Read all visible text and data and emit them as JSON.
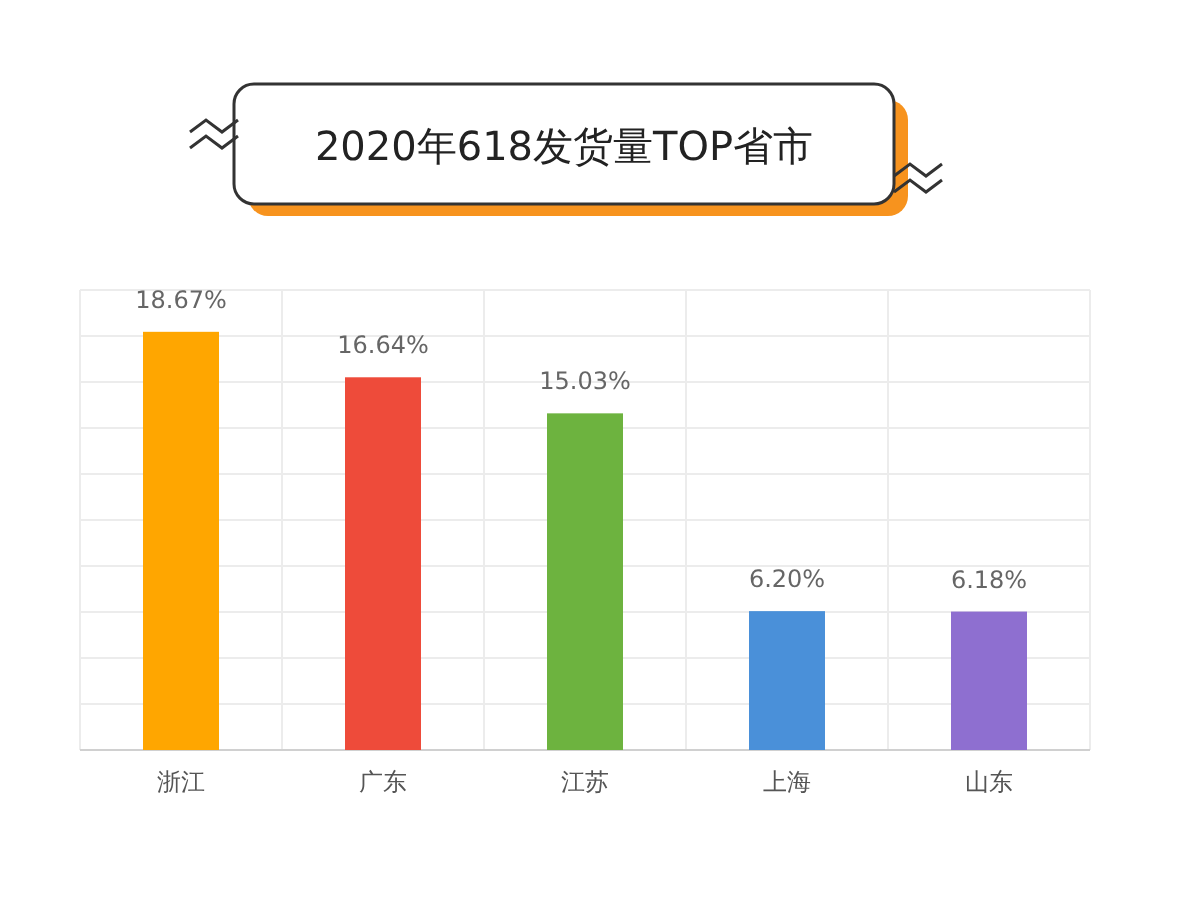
{
  "chart_data": {
    "type": "bar",
    "title": "2020年618发货量TOP省市",
    "categories": [
      "浙江",
      "广东",
      "江苏",
      "上海",
      "山东"
    ],
    "values": [
      18.67,
      16.64,
      15.03,
      6.2,
      6.18
    ],
    "value_labels": [
      "18.67%",
      "16.64%",
      "15.03%",
      "6.20%",
      "6.18%"
    ],
    "colors": [
      "#ffa600",
      "#ee4b3a",
      "#6db33f",
      "#4a90d9",
      "#8e6fd0"
    ],
    "grid": true
  }
}
